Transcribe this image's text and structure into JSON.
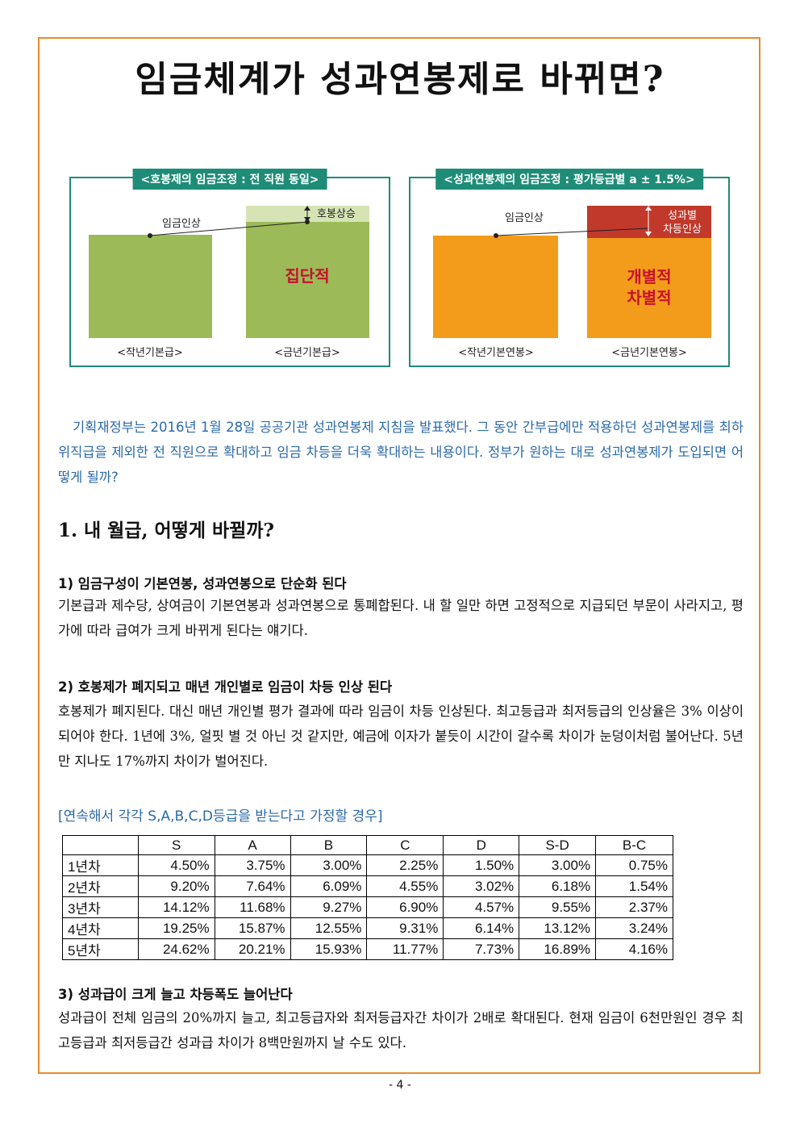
{
  "title": "임금체계가 성과연봉제로 바뀌면?",
  "diagram": {
    "left": {
      "label": "<호봉제의 임금조정 : 전 직원 동일>",
      "raise_label": "임금인상",
      "step_label": "호봉상승",
      "center_label": "집단적",
      "bar1_label": "<작년기본급>",
      "bar2_label": "<금년기본급>"
    },
    "right": {
      "label": "<성과연봉제의 임금조정 : 평가등급별 a ± 1.5%>",
      "raise_label": "임금인상",
      "perf_label_line1": "성과별",
      "perf_label_line2": "차등인상",
      "center_line1": "개별적",
      "center_line2": "차별적",
      "bar1_label": "<작년기본연봉>",
      "bar2_label": "<금년기본연봉>"
    },
    "colors": {
      "green": "#9CBA58",
      "light_green": "#D6E3B5",
      "orange": "#F39C1B",
      "red": "#C0392B",
      "teal": "#1E8C77",
      "center_text": "#C8102E"
    }
  },
  "intro": "기획재정부는 2016년 1월 28일 공공기관 성과연봉제 지침을 발표했다. 그 동안 간부급에만 적용하던 성과연봉제를 최하위직급을 제외한 전 직원으로 확대하고 임금 차등을 더욱 확대하는 내용이다. 정부가 원하는 대로 성과연봉제가 도입되면 어떻게 될까?",
  "section1": "1. 내 월급, 어떻게 바뀔까?",
  "sub1": {
    "heading": "1) 임금구성이 기본연봉, 성과연봉으로 단순화 된다",
    "text": "기본급과 제수당, 상여금이 기본연봉과 성과연봉으로 통폐합된다. 내 할 일만 하면 고정적으로 지급되던 부문이 사라지고, 평가에 따라 급여가 크게 바뀌게 된다는 얘기다."
  },
  "sub2": {
    "heading": "2) 호봉제가 폐지되고 매년 개인별로 임금이 차등 인상 된다",
    "text": "호봉제가 폐지된다. 대신 매년 개인별 평가 결과에 따라 임금이 차등 인상된다. 최고등급과 최저등급의 인상율은 3% 이상이 되어야 한다. 1년에 3%, 얼핏 별 것 아닌 것 같지만, 예금에 이자가 붙듯이 시간이 갈수록 차이가 눈덩이처럼 불어난다. 5년만 지나도 17%까지 차이가 벌어진다."
  },
  "table": {
    "caption": "[연속해서 각각 S,A,B,C,D등급을 받는다고 가정할 경우]",
    "headers": [
      "",
      "S",
      "A",
      "B",
      "C",
      "D",
      "S-D",
      "B-C"
    ],
    "rows": [
      [
        "1년차",
        "4.50%",
        "3.75%",
        "3.00%",
        "2.25%",
        "1.50%",
        "3.00%",
        "0.75%"
      ],
      [
        "2년차",
        "9.20%",
        "7.64%",
        "6.09%",
        "4.55%",
        "3.02%",
        "6.18%",
        "1.54%"
      ],
      [
        "3년차",
        "14.12%",
        "11.68%",
        "9.27%",
        "6.90%",
        "4.57%",
        "9.55%",
        "2.37%"
      ],
      [
        "4년차",
        "19.25%",
        "15.87%",
        "12.55%",
        "9.31%",
        "6.14%",
        "13.12%",
        "3.24%"
      ],
      [
        "5년차",
        "24.62%",
        "20.21%",
        "15.93%",
        "11.77%",
        "7.73%",
        "16.89%",
        "4.16%"
      ]
    ]
  },
  "sub3": {
    "heading": "3) 성과급이 크게 늘고 차등폭도 늘어난다",
    "text": "성과급이 전체 임금의 20%까지 늘고, 최고등급자와 최저등급자간 차이가 2배로 확대된다. 현재 임금이 6천만원인 경우 최고등급과 최저등급간 성과급 차이가 8백만원까지 날 수도 있다."
  },
  "page_number": "- 4 -"
}
